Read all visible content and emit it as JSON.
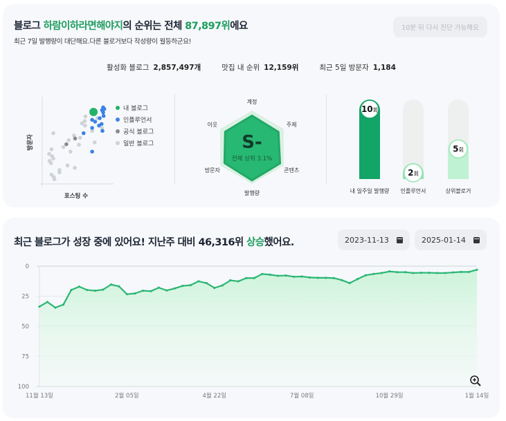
{
  "header": {
    "title_prefix": "블로그 ",
    "blog_name": "하람이하라면해야지",
    "title_mid": "의 순위는 전체 ",
    "rank": "87,897위",
    "title_suffix": "에요",
    "subtitle": "최근 7일 발행량이 대단해요.다른 블로거보다 작성량이 월등하군요!",
    "retry_label": "10분 뒤 다시 진단 가능해요"
  },
  "stats": [
    {
      "label": "활성화 블로그",
      "value": "2,857,497개"
    },
    {
      "label": "맛집 내 순위",
      "value": "12,159위"
    },
    {
      "label": "최근 5일 방문자",
      "value": "1,184"
    }
  ],
  "colors": {
    "accent": "#1e9d5f",
    "line": "#2bb673",
    "my_blog": "#27b26b",
    "influencer": "#3b82e6",
    "official": "#8a8a8a",
    "general": "#cfd2d6"
  },
  "chart_data": [
    {
      "type": "scatter",
      "xlabel": "포스팅 수",
      "ylabel": "방문자",
      "legend_position": "right",
      "series": [
        {
          "name": "내 블로그",
          "color": "#27b26b",
          "points": [
            [
              75.6,
              86.7
            ]
          ]
        },
        {
          "name": "인플루언서",
          "color": "#3b82e6",
          "points": [
            [
              89.8,
              92.2
            ],
            [
              91.5,
              90.3
            ],
            [
              88.1,
              88.9
            ],
            [
              89.8,
              86.1
            ],
            [
              90.5,
              81.9
            ],
            [
              73.6,
              77.2
            ],
            [
              78,
              75
            ],
            [
              84.7,
              79.2
            ],
            [
              87.5,
              72.2
            ],
            [
              83.7,
              70.3
            ],
            [
              73.6,
              67.5
            ],
            [
              88.8,
              63.9
            ],
            [
              61,
              61.1
            ],
            [
              73.6,
              38.9
            ]
          ]
        },
        {
          "name": "공식 블로그",
          "color": "#8a8a8a",
          "points": [
            [
              48.5,
              54.7
            ],
            [
              35.6,
              47.8
            ]
          ]
        },
        {
          "name": "일반 블로그",
          "color": "#cfd2d6",
          "points": [
            [
              63.7,
              81.4
            ],
            [
              62.7,
              75.8
            ],
            [
              58.6,
              73
            ],
            [
              63.1,
              70.3
            ],
            [
              16.3,
              61.1
            ],
            [
              46.8,
              58.3
            ],
            [
              55.9,
              55.6
            ],
            [
              39,
              52.8
            ],
            [
              54.2,
              47.2
            ],
            [
              31.2,
              44.4
            ],
            [
              41.7,
              38.9
            ],
            [
              13.6,
              41.7
            ],
            [
              10.2,
              36.1
            ],
            [
              14.6,
              33.3
            ],
            [
              16.3,
              30.6
            ],
            [
              10.8,
              27.8
            ],
            [
              12.9,
              25
            ],
            [
              37.3,
              22.2
            ],
            [
              48.1,
              19.4
            ],
            [
              25.4,
              16.7
            ],
            [
              25.4,
              13.9
            ],
            [
              13.6,
              11.1
            ],
            [
              16.9,
              8.3
            ],
            [
              18,
              5.6
            ],
            [
              73.6,
              63.9
            ],
            [
              77.3,
              50
            ],
            [
              81.4,
              79.2
            ],
            [
              88.1,
              67.2
            ]
          ]
        }
      ]
    },
    {
      "type": "radar",
      "grade": "S-",
      "caption": "전체 상위 3.1%",
      "axes": [
        "계정",
        "주제",
        "콘텐츠",
        "발행량",
        "방문자",
        "이웃"
      ],
      "values": [
        0.88,
        0.85,
        0.9,
        0.92,
        0.88,
        0.86
      ]
    },
    {
      "type": "bar",
      "unit": "회",
      "max": 10,
      "categories": [
        "내 일주일 발행량",
        "인플루언서",
        "상위블로거"
      ],
      "values": [
        10,
        2,
        5
      ]
    },
    {
      "type": "line",
      "title_prefix": "최근 블로그가 성장 중에 있어요! 지난주 대비 ",
      "delta": "46,316위",
      "delta_word": "상승",
      "title_suffix": "했어요.",
      "start_date": "2023-11-13",
      "end_date": "2025-01-14",
      "ylim": [
        0,
        100
      ],
      "y_inverted": true,
      "yticks": [
        "0",
        "25",
        "50",
        "75",
        "100"
      ],
      "grid": true,
      "xticks": [
        {
          "index": 0,
          "label": "11월 13일"
        },
        {
          "index": 11,
          "label": "2월 05일"
        },
        {
          "index": 22,
          "label": "4월 22일"
        },
        {
          "index": 33,
          "label": "7월 08일"
        },
        {
          "index": 44,
          "label": "10월 29일"
        },
        {
          "index": 55,
          "label": "1월 14일"
        }
      ],
      "values": [
        33.6,
        29.8,
        34.5,
        32,
        19.8,
        17,
        19.8,
        20.4,
        19.5,
        15.3,
        16.8,
        23.3,
        22.7,
        20.4,
        20.8,
        17.9,
        20.2,
        18.5,
        16.4,
        15.8,
        12.6,
        14.1,
        18.1,
        16,
        11.8,
        12.6,
        9.9,
        9.9,
        6.5,
        7.1,
        8,
        7.8,
        8.8,
        8.6,
        9.4,
        9.7,
        9.7,
        9.9,
        11.6,
        14.1,
        10.7,
        7.6,
        6.5,
        5.7,
        4.4,
        5,
        5,
        5.7,
        5.5,
        5.5,
        5.7,
        5.7,
        5.2,
        4.8,
        4.8,
        3
      ]
    }
  ]
}
